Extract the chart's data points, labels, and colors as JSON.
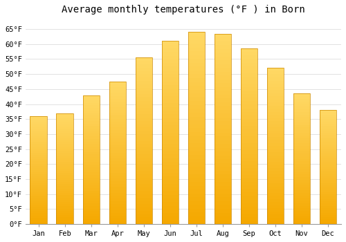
{
  "title": "Average monthly temperatures (°F ) in Born",
  "months": [
    "Jan",
    "Feb",
    "Mar",
    "Apr",
    "May",
    "Jun",
    "Jul",
    "Aug",
    "Sep",
    "Oct",
    "Nov",
    "Dec"
  ],
  "values": [
    36,
    37,
    43,
    47.5,
    55.5,
    61,
    64,
    63.5,
    58.5,
    52,
    43.5,
    38
  ],
  "bar_color_bottom": "#F5A800",
  "bar_color_top": "#FFD966",
  "background_color": "#FFFFFF",
  "plot_bg_color": "#FFFFFF",
  "grid_color": "#DDDDDD",
  "ytick_step": 5,
  "ymin": 0,
  "ymax": 68,
  "title_fontsize": 10,
  "tick_fontsize": 7.5,
  "font_family": "monospace",
  "bar_width": 0.65
}
